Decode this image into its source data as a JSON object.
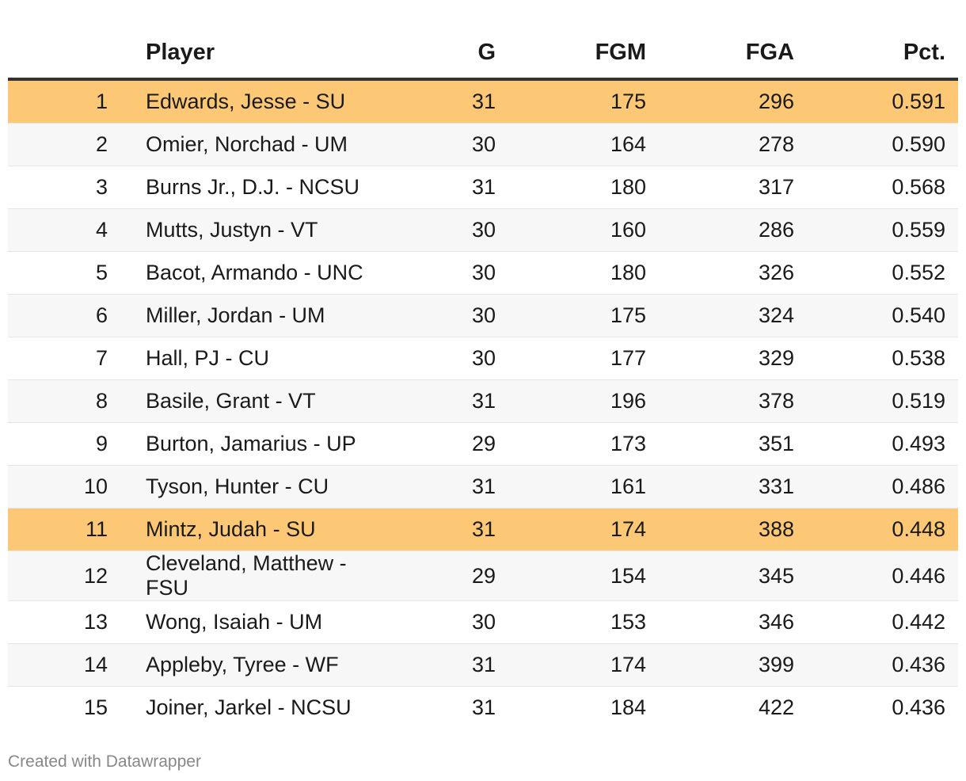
{
  "chart_data": {
    "type": "table",
    "title": "",
    "columns": [
      "",
      "Player",
      "G",
      "FGM",
      "FGA",
      "Pct."
    ],
    "highlight_color": "#fcc875",
    "rows": [
      {
        "rank": "1",
        "player": "Edwards, Jesse - SU",
        "g": "31",
        "fgm": "175",
        "fga": "296",
        "pct": "0.591",
        "highlight": true
      },
      {
        "rank": "2",
        "player": "Omier, Norchad - UM",
        "g": "30",
        "fgm": "164",
        "fga": "278",
        "pct": "0.590",
        "highlight": false
      },
      {
        "rank": "3",
        "player": "Burns Jr., D.J. - NCSU",
        "g": "31",
        "fgm": "180",
        "fga": "317",
        "pct": "0.568",
        "highlight": false
      },
      {
        "rank": "4",
        "player": "Mutts, Justyn - VT",
        "g": "30",
        "fgm": "160",
        "fga": "286",
        "pct": "0.559",
        "highlight": false
      },
      {
        "rank": "5",
        "player": "Bacot, Armando - UNC",
        "g": "30",
        "fgm": "180",
        "fga": "326",
        "pct": "0.552",
        "highlight": false
      },
      {
        "rank": "6",
        "player": "Miller, Jordan - UM",
        "g": "30",
        "fgm": "175",
        "fga": "324",
        "pct": "0.540",
        "highlight": false
      },
      {
        "rank": "7",
        "player": "Hall, PJ - CU",
        "g": "30",
        "fgm": "177",
        "fga": "329",
        "pct": "0.538",
        "highlight": false
      },
      {
        "rank": "8",
        "player": "Basile, Grant - VT",
        "g": "31",
        "fgm": "196",
        "fga": "378",
        "pct": "0.519",
        "highlight": false
      },
      {
        "rank": "9",
        "player": "Burton, Jamarius - UP",
        "g": "29",
        "fgm": "173",
        "fga": "351",
        "pct": "0.493",
        "highlight": false
      },
      {
        "rank": "10",
        "player": "Tyson, Hunter - CU",
        "g": "31",
        "fgm": "161",
        "fga": "331",
        "pct": "0.486",
        "highlight": false
      },
      {
        "rank": "11",
        "player": "Mintz, Judah - SU",
        "g": "31",
        "fgm": "174",
        "fga": "388",
        "pct": "0.448",
        "highlight": true
      },
      {
        "rank": "12",
        "player": "Cleveland, Matthew - FSU",
        "g": "29",
        "fgm": "154",
        "fga": "345",
        "pct": "0.446",
        "highlight": false
      },
      {
        "rank": "13",
        "player": "Wong, Isaiah - UM",
        "g": "30",
        "fgm": "153",
        "fga": "346",
        "pct": "0.442",
        "highlight": false
      },
      {
        "rank": "14",
        "player": "Appleby, Tyree - WF",
        "g": "31",
        "fgm": "174",
        "fga": "399",
        "pct": "0.436",
        "highlight": false
      },
      {
        "rank": "15",
        "player": "Joiner, Jarkel - NCSU",
        "g": "31",
        "fgm": "184",
        "fga": "422",
        "pct": "0.436",
        "highlight": false
      }
    ]
  },
  "footer": {
    "credit": "Created with Datawrapper"
  }
}
